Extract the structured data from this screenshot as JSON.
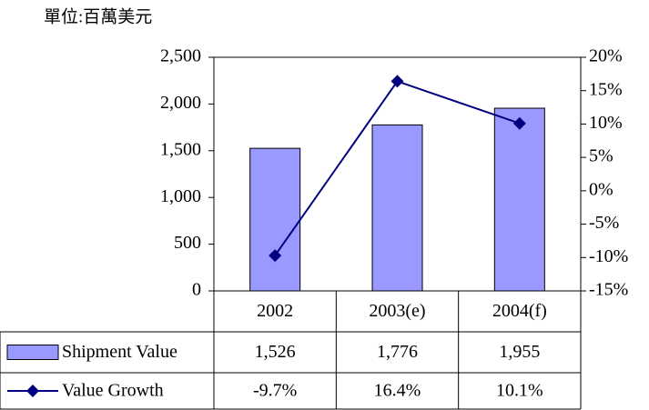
{
  "chart_data": {
    "type": "bar",
    "subtitle": "單位:百萬美元",
    "categories": [
      "2002",
      "2003(e)",
      "2004(f)"
    ],
    "series": [
      {
        "name": "Shipment Value",
        "type": "bar",
        "color": "#9999ff",
        "values": [
          1526,
          1776,
          1955
        ],
        "value_labels": [
          "1,526",
          "1,776",
          "1,955"
        ]
      },
      {
        "name": "Value Growth",
        "type": "line",
        "axis": "y2",
        "color": "#000080",
        "values": [
          -9.7,
          16.4,
          10.1
        ],
        "value_labels": [
          "-9.7%",
          "16.4%",
          "10.1%"
        ]
      }
    ],
    "ylim": [
      0,
      2500
    ],
    "yticks": [
      0,
      500,
      {
        "value": 1000,
        "label": "1,000"
      },
      {
        "value": 1500,
        "label": "1,500"
      },
      {
        "value": 2000,
        "label": "2,000"
      },
      {
        "value": 2500,
        "label": "2,500"
      }
    ],
    "y2lim": [
      -15,
      20
    ],
    "y2ticks": [
      {
        "value": -15,
        "label": "-15%"
      },
      {
        "value": -10,
        "label": "-10%"
      },
      {
        "value": -5,
        "label": "-5%"
      },
      {
        "value": 0,
        "label": "0%"
      },
      {
        "value": 5,
        "label": "5%"
      },
      {
        "value": 10,
        "label": "10%"
      },
      {
        "value": 15,
        "label": "15%"
      },
      {
        "value": 20,
        "label": "20%"
      }
    ],
    "grid": false
  }
}
